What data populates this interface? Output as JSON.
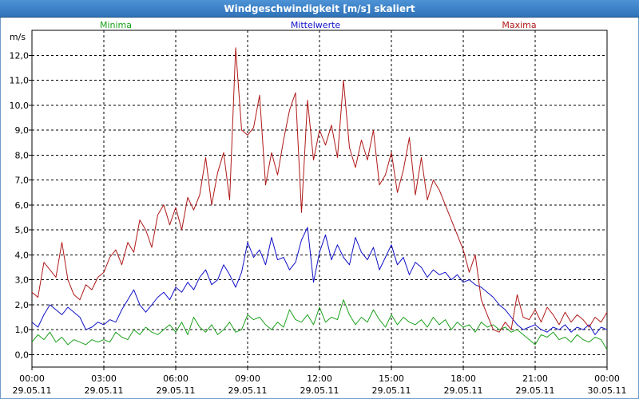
{
  "window": {
    "title": "Windgeschwindigkeit [m/s] skaliert"
  },
  "chart_data": {
    "type": "line",
    "title": "Windgeschwindigkeit [m/s] skaliert",
    "ylabel": "m/s",
    "ylim": [
      -0.5,
      13
    ],
    "y_ticks": [
      0,
      1,
      2,
      3,
      4,
      5,
      6,
      7,
      8,
      9,
      10,
      11,
      12
    ],
    "y_tick_labels": [
      "0,0",
      "1,0",
      "2,0",
      "3,0",
      "4,0",
      "5,0",
      "6,0",
      "7,0",
      "8,0",
      "9,0",
      "10,0",
      "11,0",
      "12,0"
    ],
    "x_range_hours": [
      0,
      24
    ],
    "x_ticks": [
      {
        "hour": 0,
        "time": "00:00",
        "date": "29.05.11"
      },
      {
        "hour": 3,
        "time": "03:00",
        "date": "29.05.11"
      },
      {
        "hour": 6,
        "time": "06:00",
        "date": "29.05.11"
      },
      {
        "hour": 9,
        "time": "09:00",
        "date": "29.05.11"
      },
      {
        "hour": 12,
        "time": "12:00",
        "date": "29.05.11"
      },
      {
        "hour": 15,
        "time": "15:00",
        "date": "29.05.11"
      },
      {
        "hour": 18,
        "time": "18:00",
        "date": "29.05.11"
      },
      {
        "hour": 21,
        "time": "21:00",
        "date": "29.05.11"
      },
      {
        "hour": 24,
        "time": "00:00",
        "date": "30.05.11"
      }
    ],
    "grid": true,
    "series": [
      {
        "name": "Minima",
        "color": "#1aa01a",
        "x": [
          0,
          0.25,
          0.5,
          0.75,
          1,
          1.25,
          1.5,
          1.75,
          2,
          2.25,
          2.5,
          2.75,
          3,
          3.25,
          3.5,
          3.75,
          4,
          4.25,
          4.5,
          4.75,
          5,
          5.25,
          5.5,
          5.75,
          6,
          6.25,
          6.5,
          6.75,
          7,
          7.25,
          7.5,
          7.75,
          8,
          8.25,
          8.5,
          8.75,
          9,
          9.25,
          9.5,
          9.75,
          10,
          10.25,
          10.5,
          10.75,
          11,
          11.25,
          11.5,
          11.75,
          12,
          12.25,
          12.5,
          12.75,
          13,
          13.25,
          13.5,
          13.75,
          14,
          14.25,
          14.5,
          14.75,
          15,
          15.25,
          15.5,
          15.75,
          16,
          16.25,
          16.5,
          16.75,
          17,
          17.25,
          17.5,
          17.75,
          18,
          18.25,
          18.5,
          18.75,
          19,
          19.25,
          19.5,
          19.75,
          20,
          20.25,
          20.5,
          20.75,
          21,
          21.25,
          21.5,
          21.75,
          22,
          22.25,
          22.5,
          22.75,
          23,
          23.25,
          23.5,
          23.75,
          24
        ],
        "values": [
          0.5,
          0.8,
          0.6,
          0.9,
          0.5,
          0.7,
          0.4,
          0.6,
          0.5,
          0.4,
          0.6,
          0.5,
          0.6,
          0.5,
          0.9,
          0.7,
          0.6,
          1.0,
          0.8,
          1.1,
          0.9,
          0.8,
          1.0,
          1.2,
          0.9,
          1.3,
          0.8,
          1.5,
          1.1,
          0.9,
          1.2,
          0.8,
          1.0,
          1.3,
          0.9,
          1.0,
          1.6,
          1.4,
          1.5,
          1.2,
          1.0,
          1.3,
          1.1,
          1.8,
          1.4,
          1.3,
          1.6,
          1.2,
          1.9,
          1.3,
          1.5,
          1.4,
          2.2,
          1.6,
          1.2,
          1.5,
          1.3,
          1.8,
          1.4,
          1.1,
          1.6,
          1.2,
          1.5,
          1.3,
          1.2,
          1.4,
          1.1,
          1.5,
          1.2,
          1.4,
          1.0,
          1.3,
          1.1,
          1.2,
          0.9,
          1.3,
          1.1,
          1.2,
          1.0,
          1.1,
          0.9,
          1.0,
          0.8,
          0.6,
          0.4,
          0.8,
          0.7,
          0.9,
          0.6,
          0.7,
          0.5,
          0.8,
          0.6,
          0.5,
          0.7,
          0.6,
          0.2
        ]
      },
      {
        "name": "Mittelwerte",
        "color": "#1010c8",
        "x": [
          0,
          0.25,
          0.5,
          0.75,
          1,
          1.25,
          1.5,
          1.75,
          2,
          2.25,
          2.5,
          2.75,
          3,
          3.25,
          3.5,
          3.75,
          4,
          4.25,
          4.5,
          4.75,
          5,
          5.25,
          5.5,
          5.75,
          6,
          6.25,
          6.5,
          6.75,
          7,
          7.25,
          7.5,
          7.75,
          8,
          8.25,
          8.5,
          8.75,
          9,
          9.25,
          9.5,
          9.75,
          10,
          10.25,
          10.5,
          10.75,
          11,
          11.25,
          11.5,
          11.75,
          12,
          12.25,
          12.5,
          12.75,
          13,
          13.25,
          13.5,
          13.75,
          14,
          14.25,
          14.5,
          14.75,
          15,
          15.25,
          15.5,
          15.75,
          16,
          16.25,
          16.5,
          16.75,
          17,
          17.25,
          17.5,
          17.75,
          18,
          18.25,
          18.5,
          18.75,
          19,
          19.25,
          19.5,
          19.75,
          20,
          20.25,
          20.5,
          20.75,
          21,
          21.25,
          21.5,
          21.75,
          22,
          22.25,
          22.5,
          22.75,
          23,
          23.25,
          23.5,
          23.75,
          24
        ],
        "values": [
          1.3,
          1.1,
          1.6,
          2.0,
          1.8,
          1.6,
          1.9,
          1.7,
          1.5,
          1.0,
          1.1,
          1.3,
          1.2,
          1.4,
          1.3,
          1.8,
          2.2,
          2.6,
          2.0,
          1.7,
          2.0,
          2.3,
          2.5,
          2.2,
          2.7,
          2.5,
          2.9,
          2.6,
          3.1,
          3.4,
          2.8,
          3.0,
          3.6,
          3.2,
          2.7,
          3.3,
          4.5,
          3.9,
          4.2,
          3.6,
          4.7,
          3.8,
          3.9,
          3.4,
          3.7,
          4.6,
          5.1,
          2.9,
          4.1,
          4.8,
          3.8,
          4.4,
          3.9,
          3.6,
          4.7,
          4.1,
          3.8,
          4.3,
          3.4,
          3.9,
          4.4,
          3.6,
          3.9,
          3.2,
          3.7,
          3.5,
          3.1,
          3.4,
          3.2,
          3.3,
          3.0,
          3.2,
          2.9,
          3.0,
          2.8,
          2.7,
          2.5,
          2.3,
          2.0,
          1.8,
          1.5,
          1.2,
          1.0,
          1.1,
          1.2,
          1.0,
          0.9,
          1.1,
          1.0,
          1.2,
          0.9,
          1.1,
          1.0,
          1.2,
          0.8,
          1.1,
          1.0
        ]
      },
      {
        "name": "Maxima",
        "color": "#b01818",
        "x": [
          0,
          0.25,
          0.5,
          0.75,
          1,
          1.25,
          1.5,
          1.75,
          2,
          2.25,
          2.5,
          2.75,
          3,
          3.25,
          3.5,
          3.75,
          4,
          4.25,
          4.5,
          4.75,
          5,
          5.25,
          5.5,
          5.75,
          6,
          6.25,
          6.5,
          6.75,
          7,
          7.25,
          7.5,
          7.75,
          8,
          8.25,
          8.5,
          8.75,
          9,
          9.25,
          9.5,
          9.75,
          10,
          10.25,
          10.5,
          10.75,
          11,
          11.25,
          11.5,
          11.75,
          12,
          12.25,
          12.5,
          12.75,
          13,
          13.25,
          13.5,
          13.75,
          14,
          14.25,
          14.5,
          14.75,
          15,
          15.25,
          15.5,
          15.75,
          16,
          16.25,
          16.5,
          16.75,
          17,
          17.25,
          17.5,
          17.75,
          18,
          18.25,
          18.5,
          18.75,
          19,
          19.25,
          19.5,
          19.75,
          20,
          20.25,
          20.5,
          20.75,
          21,
          21.25,
          21.5,
          21.75,
          22,
          22.25,
          22.5,
          22.75,
          23,
          23.25,
          23.5,
          23.75,
          24
        ],
        "values": [
          2.5,
          2.3,
          3.7,
          3.4,
          3.1,
          4.5,
          3.0,
          2.4,
          2.2,
          2.8,
          2.6,
          3.1,
          3.3,
          3.9,
          4.2,
          3.6,
          4.5,
          4.1,
          5.4,
          5.0,
          4.3,
          5.6,
          6.0,
          5.2,
          5.9,
          5.0,
          6.3,
          5.8,
          6.4,
          7.9,
          6.0,
          7.3,
          8.1,
          6.2,
          12.3,
          9.0,
          8.8,
          9.1,
          10.4,
          6.8,
          8.1,
          7.2,
          8.6,
          9.8,
          10.5,
          5.7,
          10.2,
          7.8,
          9.0,
          8.4,
          9.2,
          7.9,
          11.0,
          8.3,
          7.5,
          8.6,
          7.8,
          9.0,
          6.8,
          7.2,
          8.1,
          6.5,
          7.4,
          8.7,
          6.4,
          7.9,
          6.2,
          7.0,
          6.6,
          6.0,
          5.4,
          4.8,
          4.2,
          3.3,
          4.0,
          2.2,
          1.6,
          1.0,
          0.9,
          1.3,
          1.0,
          2.4,
          1.5,
          1.4,
          1.8,
          1.3,
          1.9,
          1.6,
          1.2,
          1.7,
          1.3,
          1.6,
          1.4,
          1.1,
          1.5,
          1.3,
          1.7
        ]
      }
    ]
  }
}
